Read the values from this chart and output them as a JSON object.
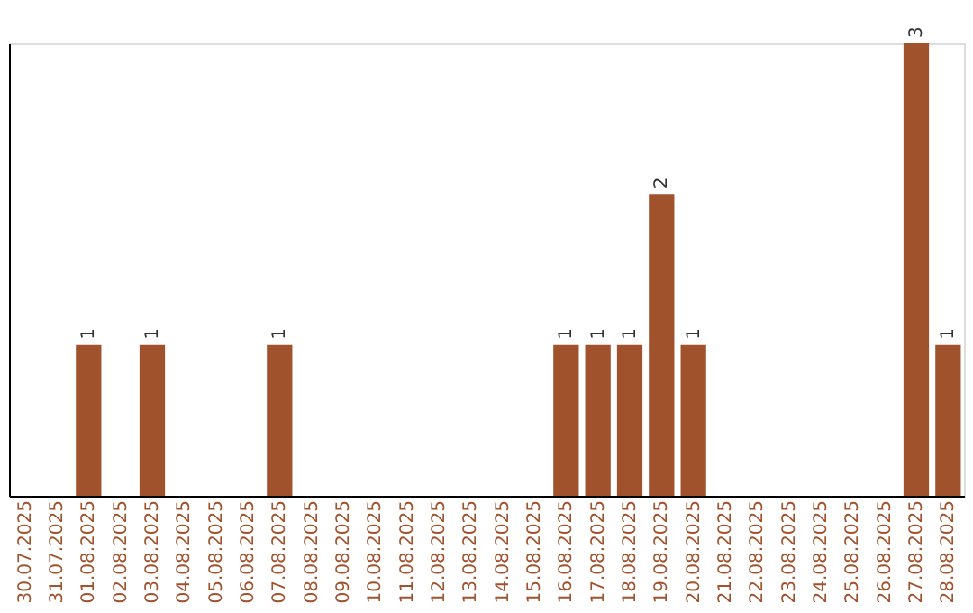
{
  "chart_data": {
    "type": "bar",
    "categories": [
      "30.07.2025",
      "31.07.2025",
      "01.08.2025",
      "02.08.2025",
      "03.08.2025",
      "04.08.2025",
      "05.08.2025",
      "06.08.2025",
      "07.08.2025",
      "08.08.2025",
      "09.08.2025",
      "10.08.2025",
      "11.08.2025",
      "12.08.2025",
      "13.08.2025",
      "14.08.2025",
      "15.08.2025",
      "16.08.2025",
      "17.08.2025",
      "18.08.2025",
      "19.08.2025",
      "20.08.2025",
      "21.08.2025",
      "22.08.2025",
      "23.08.2025",
      "24.08.2025",
      "25.08.2025",
      "26.08.2025",
      "27.08.2025",
      "28.08.2025"
    ],
    "values": [
      0,
      0,
      1,
      0,
      1,
      0,
      0,
      0,
      1,
      0,
      0,
      0,
      0,
      0,
      0,
      0,
      0,
      1,
      1,
      1,
      2,
      1,
      0,
      0,
      0,
      0,
      0,
      0,
      3,
      1
    ],
    "value_labels": [
      null,
      null,
      "1",
      null,
      "1",
      null,
      null,
      null,
      "1",
      null,
      null,
      null,
      null,
      null,
      null,
      null,
      null,
      "1",
      "1",
      "1",
      "2",
      "1",
      null,
      null,
      null,
      null,
      null,
      null,
      "3",
      "1"
    ],
    "color": "#a0522d",
    "grid": false
  }
}
